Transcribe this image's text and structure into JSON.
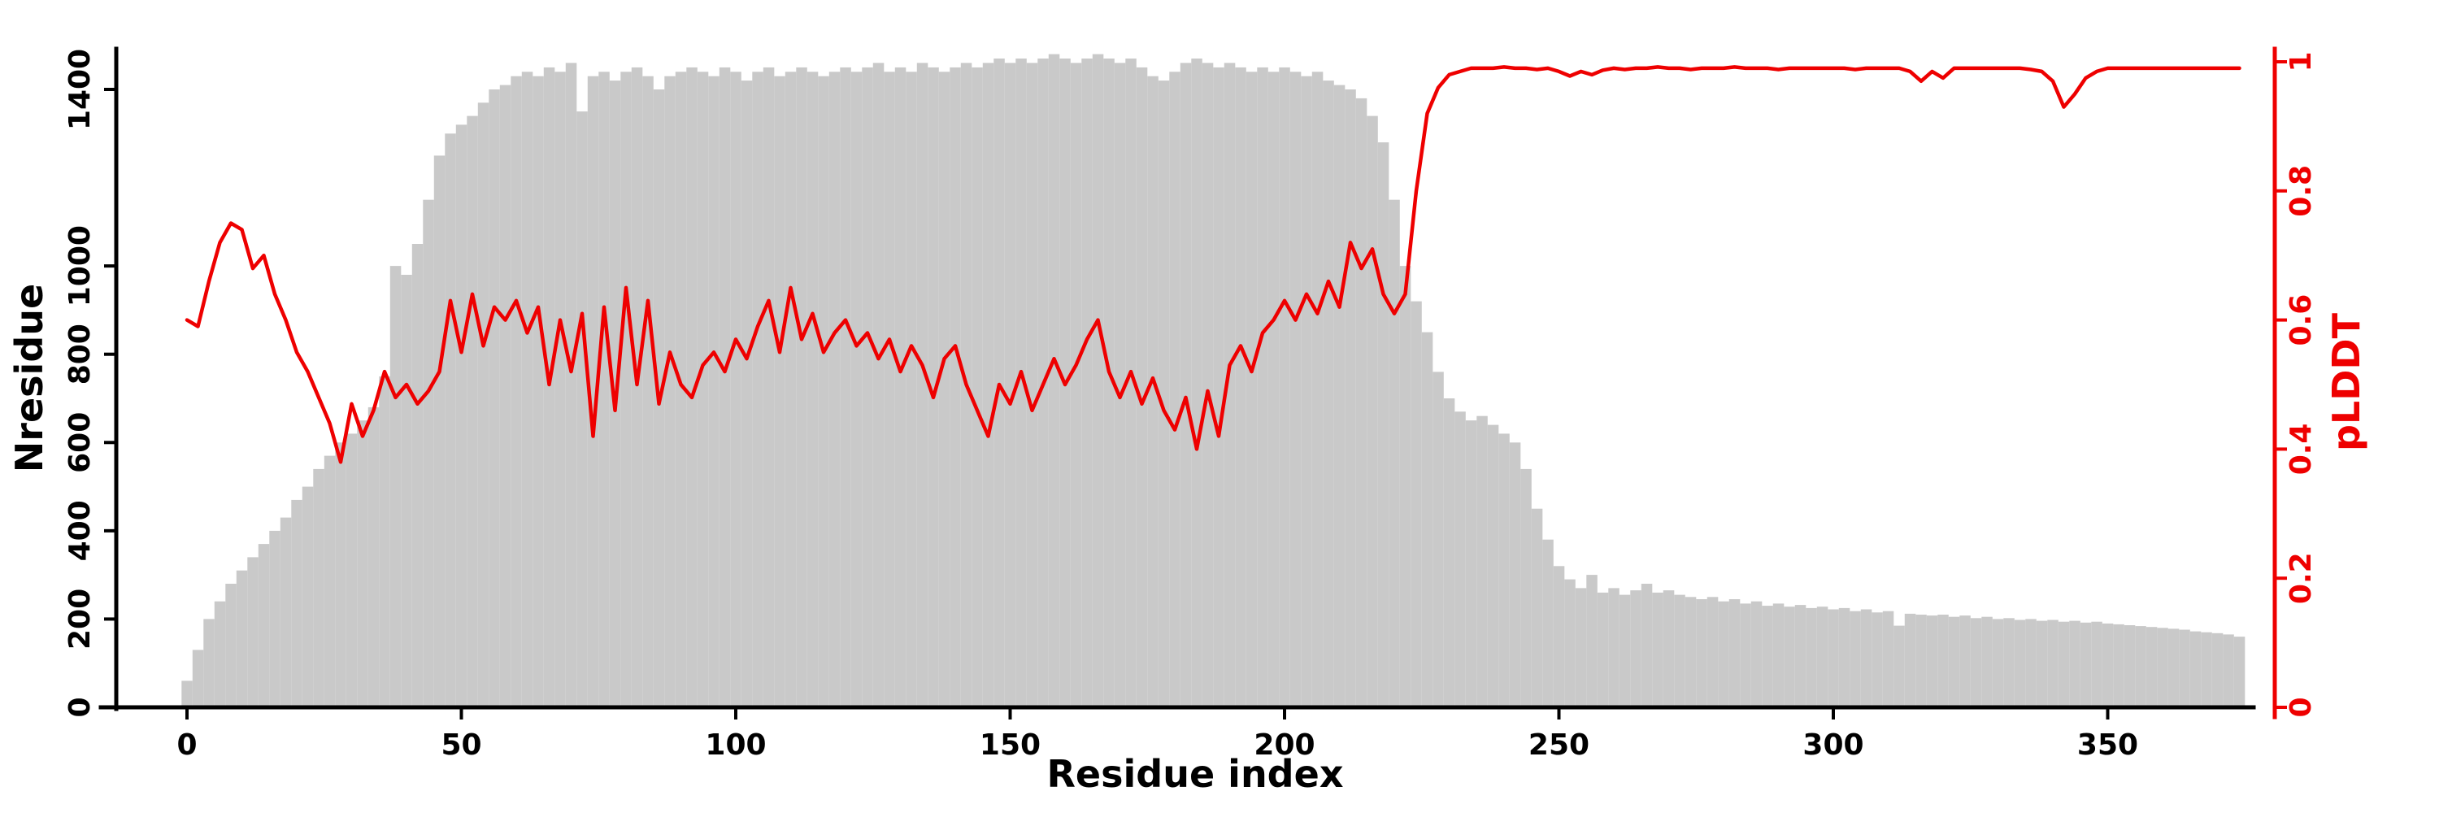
{
  "figure": {
    "background": "#ffffff"
  },
  "chart_data": {
    "type": "bar",
    "title": "",
    "xlabel": "Residue index",
    "ylabel_left": "Nresidue",
    "ylabel_right": "pLDDT",
    "x_start": 0,
    "x_step": 2,
    "x_range": [
      0,
      375
    ],
    "y_left_range": [
      0,
      1480
    ],
    "y_right_range": [
      0,
      1
    ],
    "x_ticks": [
      0,
      50,
      100,
      150,
      200,
      250,
      300,
      350
    ],
    "x_tick_labels": [
      "0",
      "50",
      "100",
      "150",
      "200",
      "250",
      "300",
      "350"
    ],
    "y_left_ticks": [
      0,
      200,
      400,
      600,
      800,
      1000,
      1400
    ],
    "y_left_tick_labels": [
      "0",
      "200",
      "400",
      "600",
      "800",
      "1000",
      "1400"
    ],
    "y_right_ticks": [
      0,
      0.2,
      0.4,
      0.6,
      0.8,
      1
    ],
    "y_right_tick_labels": [
      "0",
      "0.2",
      "0.4",
      "0.6",
      "0.8",
      "1"
    ],
    "grid": false,
    "legend": "none",
    "colors": {
      "bar": "#c9c9c9",
      "line": "#ee0000",
      "axis_left": "#000000",
      "axis_bottom": "#000000",
      "axis_right": "#ee0000"
    },
    "series": [
      {
        "name": "Nresidue",
        "render": "bar",
        "axis": "left",
        "color": "#c9c9c9",
        "values": [
          60,
          130,
          200,
          240,
          280,
          310,
          340,
          370,
          400,
          430,
          470,
          500,
          540,
          570,
          600,
          620,
          650,
          680,
          750,
          1000,
          980,
          1050,
          1150,
          1250,
          1300,
          1320,
          1340,
          1370,
          1400,
          1410,
          1430,
          1440,
          1430,
          1450,
          1440,
          1460,
          1350,
          1430,
          1440,
          1420,
          1440,
          1450,
          1430,
          1400,
          1430,
          1440,
          1450,
          1440,
          1430,
          1450,
          1440,
          1420,
          1440,
          1450,
          1430,
          1440,
          1450,
          1440,
          1430,
          1440,
          1450,
          1440,
          1450,
          1460,
          1440,
          1450,
          1440,
          1460,
          1450,
          1440,
          1450,
          1460,
          1450,
          1460,
          1470,
          1460,
          1470,
          1460,
          1470,
          1480,
          1470,
          1460,
          1470,
          1480,
          1470,
          1460,
          1470,
          1450,
          1430,
          1420,
          1440,
          1460,
          1470,
          1460,
          1450,
          1460,
          1450,
          1440,
          1450,
          1440,
          1450,
          1440,
          1430,
          1440,
          1420,
          1410,
          1400,
          1380,
          1340,
          1280,
          1150,
          1000,
          920,
          850,
          760,
          700,
          670,
          650,
          660,
          640,
          620,
          600,
          540,
          450,
          380,
          320,
          290,
          270,
          300,
          260,
          270,
          255,
          265,
          280,
          260,
          265,
          255,
          250,
          245,
          250,
          240,
          245,
          235,
          240,
          230,
          235,
          228,
          232,
          225,
          228,
          222,
          225,
          218,
          222,
          215,
          218,
          185,
          212,
          210,
          208,
          210,
          205,
          208,
          202,
          205,
          200,
          202,
          198,
          200,
          196,
          198,
          194,
          196,
          192,
          194,
          190,
          188,
          186,
          184,
          182,
          180,
          178,
          176,
          172,
          170,
          168,
          165,
          160
        ]
      },
      {
        "name": "pLDDT",
        "render": "line",
        "axis": "right",
        "color": "#ee0000",
        "values": [
          0.6,
          0.59,
          0.66,
          0.72,
          0.75,
          0.74,
          0.68,
          0.7,
          0.64,
          0.6,
          0.55,
          0.52,
          0.48,
          0.44,
          0.38,
          0.47,
          0.42,
          0.46,
          0.52,
          0.48,
          0.5,
          0.47,
          0.49,
          0.52,
          0.63,
          0.55,
          0.64,
          0.56,
          0.62,
          0.6,
          0.63,
          0.58,
          0.62,
          0.5,
          0.6,
          0.52,
          0.61,
          0.42,
          0.62,
          0.46,
          0.65,
          0.5,
          0.63,
          0.47,
          0.55,
          0.5,
          0.48,
          0.53,
          0.55,
          0.52,
          0.57,
          0.54,
          0.59,
          0.63,
          0.55,
          0.65,
          0.57,
          0.61,
          0.55,
          0.58,
          0.6,
          0.56,
          0.58,
          0.54,
          0.57,
          0.52,
          0.56,
          0.53,
          0.48,
          0.54,
          0.56,
          0.5,
          0.46,
          0.42,
          0.5,
          0.47,
          0.52,
          0.46,
          0.5,
          0.54,
          0.5,
          0.53,
          0.57,
          0.6,
          0.52,
          0.48,
          0.52,
          0.47,
          0.51,
          0.46,
          0.43,
          0.48,
          0.4,
          0.49,
          0.42,
          0.53,
          0.56,
          0.52,
          0.58,
          0.6,
          0.63,
          0.6,
          0.64,
          0.61,
          0.66,
          0.62,
          0.72,
          0.68,
          0.71,
          0.64,
          0.61,
          0.64,
          0.8,
          0.92,
          0.96,
          0.98,
          0.985,
          0.99,
          0.99,
          0.99,
          0.992,
          0.99,
          0.99,
          0.988,
          0.99,
          0.985,
          0.978,
          0.985,
          0.98,
          0.987,
          0.99,
          0.988,
          0.99,
          0.99,
          0.992,
          0.99,
          0.99,
          0.988,
          0.99,
          0.99,
          0.99,
          0.992,
          0.99,
          0.99,
          0.99,
          0.988,
          0.99,
          0.99,
          0.99,
          0.99,
          0.99,
          0.99,
          0.988,
          0.99,
          0.99,
          0.99,
          0.99,
          0.985,
          0.97,
          0.985,
          0.975,
          0.99,
          0.99,
          0.99,
          0.99,
          0.99,
          0.99,
          0.99,
          0.988,
          0.985,
          0.97,
          0.93,
          0.95,
          0.975,
          0.985,
          0.99,
          0.99,
          0.99,
          0.99,
          0.99,
          0.99,
          0.99,
          0.99,
          0.99,
          0.99,
          0.99,
          0.99,
          0.99
        ]
      }
    ]
  }
}
